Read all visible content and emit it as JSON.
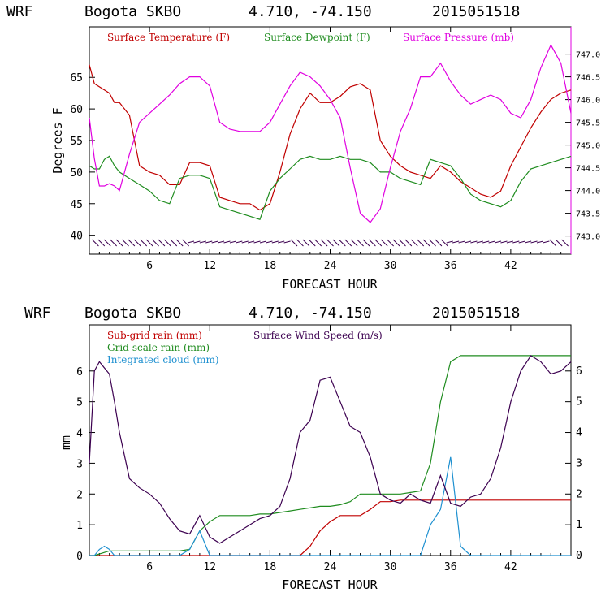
{
  "colors": {
    "temperature": "#c00000",
    "dewpoint": "#1f8c1f",
    "pressure": "#e000e0",
    "subgrid_rain": "#c00000",
    "gridscale_rain": "#1f8c1f",
    "cloud": "#1e90d0",
    "wind": "#3c0050",
    "barbs": "#3c0050"
  },
  "chart_data": [
    {
      "type": "line",
      "header": {
        "model": "WRF",
        "station": "Bogota SKBO",
        "coords": "4.710, -74.150",
        "run": "2015051518"
      },
      "xlabel": "FORECAST HOUR",
      "ylabel": "Degrees F",
      "xlim": [
        0,
        48
      ],
      "ylim": [
        37,
        73
      ],
      "y2lim": [
        742.6,
        747.6
      ],
      "xticks": [
        "6",
        "12",
        "18",
        "24",
        "30",
        "36",
        "42"
      ],
      "yticks": [
        "40",
        "45",
        "50",
        "55",
        "60",
        "65"
      ],
      "y2ticks": [
        "743.0",
        "743.5",
        "744.0",
        "744.5",
        "745.0",
        "745.5",
        "746.0",
        "746.5",
        "747.0"
      ],
      "legend": [
        "Surface Temperature (F)",
        "Surface Dewpoint (F)",
        "Surface Pressure (mb)"
      ],
      "x": [
        0,
        0.5,
        1,
        1.5,
        2,
        2.5,
        3,
        4,
        5,
        6,
        7,
        8,
        9,
        10,
        11,
        12,
        13,
        14,
        15,
        16,
        17,
        18,
        19,
        20,
        21,
        22,
        23,
        24,
        25,
        26,
        27,
        28,
        29,
        30,
        31,
        32,
        33,
        34,
        35,
        36,
        37,
        38,
        39,
        40,
        41,
        42,
        43,
        44,
        45,
        46,
        47,
        48
      ],
      "series": [
        {
          "name": "Surface Temperature (F)",
          "axis": "left",
          "values": [
            67,
            64,
            63.5,
            63,
            62.5,
            61,
            61,
            59,
            51,
            50,
            49.5,
            48,
            48,
            51.5,
            51.5,
            51,
            46,
            45.5,
            45,
            45,
            44,
            45,
            50,
            56,
            60,
            62.5,
            61,
            61,
            62,
            63.5,
            64,
            63,
            55,
            52.5,
            51,
            50,
            49.5,
            49,
            51,
            50,
            48.5,
            47.5,
            46.5,
            46,
            47,
            51,
            54,
            57,
            59.5,
            61.5,
            62.5,
            63
          ]
        },
        {
          "name": "Surface Dewpoint (F)",
          "axis": "left",
          "values": [
            51,
            50.5,
            50.5,
            52,
            52.5,
            51,
            50,
            49,
            48,
            47,
            45.5,
            45,
            49,
            49.5,
            49.5,
            49,
            44.5,
            44,
            43.5,
            43,
            42.5,
            47,
            49,
            50.5,
            52,
            52.5,
            52,
            52,
            52.5,
            52,
            52,
            51.5,
            50,
            50,
            49,
            48.5,
            48,
            52,
            51.5,
            51,
            49,
            46.5,
            45.5,
            45,
            44.5,
            45.5,
            48.5,
            50.5,
            51,
            51.5,
            52,
            52.5
          ]
        },
        {
          "name": "Surface Pressure (mb)",
          "axis": "right",
          "values": [
            745.6,
            744.7,
            744.1,
            744.1,
            744.15,
            744.1,
            744.0,
            744.8,
            745.5,
            745.7,
            745.9,
            746.1,
            746.35,
            746.5,
            746.5,
            746.3,
            745.5,
            745.35,
            745.3,
            745.3,
            745.3,
            745.5,
            745.9,
            746.3,
            746.6,
            746.5,
            746.3,
            746.0,
            745.6,
            744.5,
            743.5,
            743.3,
            743.6,
            744.5,
            745.3,
            745.8,
            746.5,
            746.5,
            746.8,
            746.4,
            746.1,
            745.9,
            746.0,
            746.1,
            746.0,
            745.7,
            745.6,
            746.0,
            746.7,
            747.2,
            746.8,
            745.7
          ]
        }
      ]
    },
    {
      "type": "line",
      "header": {
        "model": "WRF",
        "station": "Bogota SKBO",
        "coords": "4.710, -74.150",
        "run": "2015051518"
      },
      "xlabel": "FORECAST HOUR",
      "ylabel": "mm",
      "xlim": [
        0,
        48
      ],
      "ylim": [
        0,
        7.5
      ],
      "y2lim": [
        0,
        7.5
      ],
      "xticks": [
        "6",
        "12",
        "18",
        "24",
        "30",
        "36",
        "42"
      ],
      "yticks": [
        "0",
        "1",
        "2",
        "3",
        "4",
        "5",
        "6"
      ],
      "y2ticks": [
        "0",
        "1",
        "2",
        "3",
        "4",
        "5",
        "6"
      ],
      "legend": [
        "Sub-grid rain (mm)",
        "Surface Wind Speed (m/s)",
        "Grid-scale rain (mm)",
        "Integrated cloud (mm)"
      ],
      "x": [
        0,
        0.5,
        1,
        1.5,
        2,
        2.5,
        3,
        4,
        5,
        6,
        7,
        8,
        9,
        10,
        11,
        12,
        13,
        14,
        15,
        16,
        17,
        18,
        19,
        20,
        21,
        22,
        23,
        24,
        25,
        26,
        27,
        28,
        29,
        30,
        31,
        32,
        33,
        34,
        35,
        36,
        37,
        38,
        39,
        40,
        41,
        42,
        43,
        44,
        45,
        46,
        47,
        48
      ],
      "series": [
        {
          "name": "Sub-grid rain (mm)",
          "axis": "left",
          "values": [
            0,
            0,
            0,
            0,
            0,
            0,
            0,
            0,
            0,
            0,
            0,
            0,
            0,
            0,
            0,
            0,
            0,
            0,
            0,
            0,
            0,
            0,
            0,
            0,
            0,
            0.3,
            0.8,
            1.1,
            1.3,
            1.3,
            1.3,
            1.5,
            1.75,
            1.75,
            1.8,
            1.8,
            1.8,
            1.8,
            1.8,
            1.8,
            1.8,
            1.8,
            1.8,
            1.8,
            1.8,
            1.8,
            1.8,
            1.8,
            1.8,
            1.8,
            1.8,
            1.8
          ]
        },
        {
          "name": "Grid-scale rain (mm)",
          "axis": "left",
          "values": [
            0,
            0,
            0.05,
            0.1,
            0.15,
            0.15,
            0.15,
            0.15,
            0.15,
            0.15,
            0.15,
            0.15,
            0.15,
            0.2,
            0.8,
            1.1,
            1.3,
            1.3,
            1.3,
            1.3,
            1.35,
            1.35,
            1.4,
            1.45,
            1.5,
            1.55,
            1.6,
            1.6,
            1.65,
            1.75,
            2.0,
            2.0,
            2.0,
            2.0,
            2.0,
            2.05,
            2.1,
            3.0,
            5.0,
            6.3,
            6.5,
            6.5,
            6.5,
            6.5,
            6.5,
            6.5,
            6.5,
            6.5,
            6.5,
            6.5,
            6.5,
            6.5
          ]
        },
        {
          "name": "Integrated cloud (mm)",
          "axis": "left",
          "values": [
            0,
            0,
            0.2,
            0.3,
            0.2,
            0,
            0,
            0,
            0,
            0,
            0,
            0,
            0,
            0.2,
            0.8,
            0,
            0,
            0,
            0,
            0,
            0,
            0,
            0,
            0,
            0,
            0,
            0,
            0,
            0,
            0,
            0,
            0,
            0,
            0,
            0,
            0,
            0,
            1.0,
            1.5,
            3.2,
            0.3,
            0,
            0,
            0,
            0,
            0,
            0,
            0,
            0,
            0,
            0,
            0
          ]
        },
        {
          "name": "Surface Wind Speed (m/s)",
          "axis": "right",
          "values": [
            3.0,
            6.0,
            6.3,
            6.1,
            5.9,
            5.0,
            4.0,
            2.5,
            2.2,
            2.0,
            1.7,
            1.2,
            0.8,
            0.7,
            1.3,
            0.6,
            0.4,
            0.6,
            0.8,
            1.0,
            1.2,
            1.3,
            1.6,
            2.5,
            4.0,
            4.4,
            5.7,
            5.8,
            5.0,
            4.2,
            4.0,
            3.2,
            2.0,
            1.8,
            1.7,
            2.0,
            1.8,
            1.7,
            2.6,
            1.7,
            1.6,
            1.9,
            2.0,
            2.5,
            3.5,
            5.0,
            6.0,
            6.5,
            6.3,
            5.9,
            6.0,
            6.3
          ]
        }
      ]
    }
  ]
}
